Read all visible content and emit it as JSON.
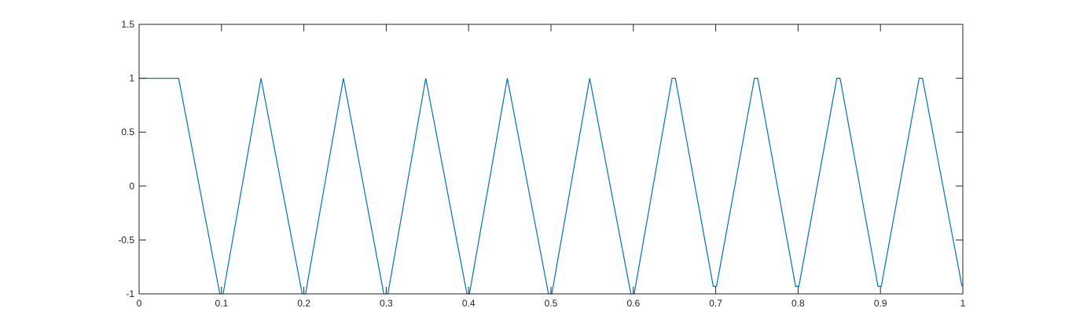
{
  "chart_data": {
    "type": "line",
    "title": "",
    "xlabel": "",
    "ylabel": "",
    "xlim": [
      0,
      1
    ],
    "ylim": [
      -1,
      1.5
    ],
    "grid": false,
    "legend": "none",
    "x_ticks": [
      0,
      0.1,
      0.2,
      0.3,
      0.4,
      0.5,
      0.6,
      0.7,
      0.8,
      0.9,
      1
    ],
    "x_tick_labels": [
      "0",
      "0.1",
      "0.2",
      "0.3",
      "0.4",
      "0.5",
      "0.6",
      "0.7",
      "0.8",
      "0.9",
      "1"
    ],
    "y_ticks": [
      -1,
      -0.5,
      0,
      0.5,
      1,
      1.5
    ],
    "y_tick_labels": [
      "-1",
      "-0.5",
      "0",
      "0.5",
      "1",
      "1.5"
    ],
    "series": [
      {
        "color": "#0072bd",
        "x": [
          0,
          0.048,
          0.098,
          0.102,
          0.148,
          0.198,
          0.202,
          0.248,
          0.297,
          0.302,
          0.348,
          0.398,
          0.401,
          0.447,
          0.497,
          0.501,
          0.547,
          0.597,
          0.601,
          0.647,
          0.651,
          0.697,
          0.701,
          0.747,
          0.751,
          0.797,
          0.801,
          0.847,
          0.851,
          0.897,
          0.901,
          0.947,
          0.951,
          0.999
        ],
        "y": [
          1,
          1,
          -1,
          -1,
          1,
          -1,
          -1,
          1,
          -1,
          -1,
          1,
          -1,
          -1,
          1,
          -1,
          -1,
          1,
          -1,
          -1,
          1,
          1,
          -0.93,
          -0.93,
          1,
          1,
          -0.93,
          -0.93,
          1,
          1,
          -0.93,
          -0.93,
          1,
          1,
          -0.93
        ]
      }
    ]
  }
}
